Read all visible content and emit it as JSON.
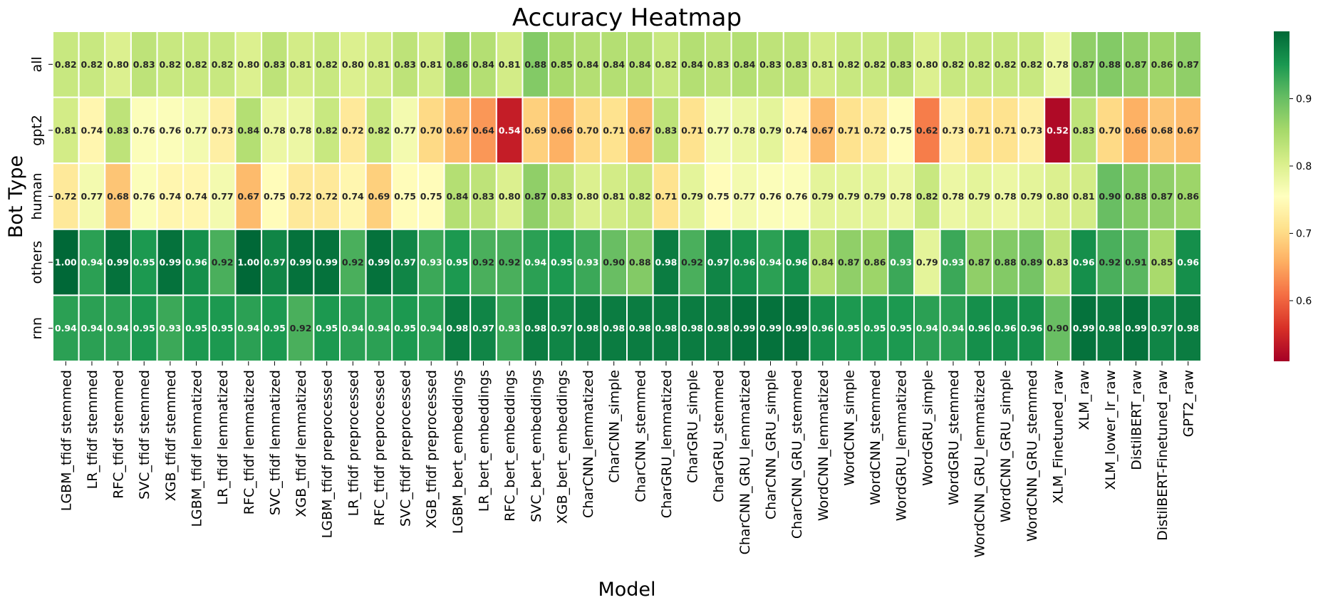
{
  "chart_data": {
    "type": "heatmap",
    "title": "Accuracy Heatmap",
    "xlabel": "Model",
    "ylabel": "Bot Type",
    "rows": [
      "all",
      "gpt2",
      "human",
      "others",
      "rnn"
    ],
    "columns": [
      "LGBM_tfidf stemmed",
      "LR_tfidf stemmed",
      "RFC_tfidf stemmed",
      "SVC_tfidf stemmed",
      "XGB_tfidf stemmed",
      "LGBM_tfidf lemmatized",
      "LR_tfidf lemmatized",
      "RFC_tfidf lemmatized",
      "SVC_tfidf lemmatized",
      "XGB_tfidf lemmatized",
      "LGBM_tfidf preprocessed",
      "LR_tfidf preprocessed",
      "RFC_tfidf preprocessed",
      "SVC_tfidf preprocessed",
      "XGB_tfidf preprocessed",
      "LGBM_bert_embeddings",
      "LR_bert_embeddings",
      "RFC_bert_embeddings",
      "SVC_bert_embeddings",
      "XGB_bert_embeddings",
      "CharCNN_lemmatized",
      "CharCNN_simple",
      "CharCNN_stemmed",
      "CharGRU_lemmatized",
      "CharGRU_simple",
      "CharGRU_stemmed",
      "CharCNN_GRU_lemmatized",
      "CharCNN_GRU_simple",
      "CharCNN_GRU_stemmed",
      "WordCNN_lemmatized",
      "WordCNN_simple",
      "WordCNN_stemmed",
      "WordGRU_lemmatized",
      "WordGRU_simple",
      "WordGRU_stemmed",
      "WordCNN_GRU_lemmatized",
      "WordCNN_GRU_simple",
      "WordCNN_GRU_stemmed",
      "XLM_Finetuned_raw",
      "XLM_raw",
      "XLM_lower_lr_raw",
      "DistilBERT_raw",
      "DistilBERT-Finetuned_raw",
      "GPT2_raw"
    ],
    "values": [
      [
        0.82,
        0.82,
        0.8,
        0.83,
        0.82,
        0.82,
        0.82,
        0.8,
        0.83,
        0.81,
        0.82,
        0.8,
        0.81,
        0.83,
        0.81,
        0.86,
        0.84,
        0.81,
        0.88,
        0.85,
        0.84,
        0.84,
        0.84,
        0.82,
        0.84,
        0.83,
        0.84,
        0.83,
        0.83,
        0.81,
        0.82,
        0.82,
        0.83,
        0.8,
        0.82,
        0.82,
        0.82,
        0.82,
        0.78,
        0.87,
        0.88,
        0.87,
        0.86,
        0.87
      ],
      [
        0.81,
        0.74,
        0.83,
        0.76,
        0.76,
        0.77,
        0.73,
        0.84,
        0.78,
        0.78,
        0.82,
        0.72,
        0.82,
        0.77,
        0.7,
        0.67,
        0.64,
        0.54,
        0.69,
        0.66,
        0.7,
        0.71,
        0.67,
        0.83,
        0.71,
        0.77,
        0.78,
        0.79,
        0.74,
        0.67,
        0.71,
        0.72,
        0.75,
        0.62,
        0.73,
        0.71,
        0.71,
        0.73,
        0.52,
        0.83,
        0.7,
        0.66,
        0.68,
        0.67
      ],
      [
        0.72,
        0.77,
        0.68,
        0.76,
        0.74,
        0.74,
        0.77,
        0.67,
        0.75,
        0.72,
        0.72,
        0.74,
        0.69,
        0.75,
        0.75,
        0.84,
        0.83,
        0.8,
        0.87,
        0.83,
        0.8,
        0.81,
        0.82,
        0.71,
        0.79,
        0.75,
        0.77,
        0.76,
        0.76,
        0.79,
        0.79,
        0.79,
        0.78,
        0.82,
        0.78,
        0.79,
        0.78,
        0.79,
        0.8,
        0.81,
        0.9,
        0.88,
        0.87,
        0.86
      ],
      [
        1.0,
        0.94,
        0.99,
        0.95,
        0.99,
        0.96,
        0.92,
        1.0,
        0.97,
        0.99,
        0.99,
        0.92,
        0.99,
        0.97,
        0.93,
        0.95,
        0.92,
        0.92,
        0.94,
        0.95,
        0.93,
        0.9,
        0.88,
        0.98,
        0.92,
        0.97,
        0.96,
        0.94,
        0.96,
        0.84,
        0.87,
        0.86,
        0.93,
        0.79,
        0.93,
        0.87,
        0.88,
        0.89,
        0.83,
        0.96,
        0.92,
        0.91,
        0.85,
        0.96
      ],
      [
        0.94,
        0.94,
        0.94,
        0.95,
        0.93,
        0.95,
        0.95,
        0.94,
        0.95,
        0.92,
        0.95,
        0.94,
        0.94,
        0.95,
        0.94,
        0.98,
        0.97,
        0.93,
        0.98,
        0.97,
        0.98,
        0.98,
        0.98,
        0.98,
        0.98,
        0.98,
        0.99,
        0.99,
        0.99,
        0.96,
        0.95,
        0.95,
        0.95,
        0.94,
        0.94,
        0.96,
        0.96,
        0.96,
        0.9,
        0.99,
        0.98,
        0.99,
        0.97,
        0.98
      ]
    ],
    "vmin": 0.51,
    "vmax": 1.0,
    "colormap": "RdYlGn",
    "colorbar_ticks": [
      0.6,
      0.7,
      0.8,
      0.9
    ],
    "colorbar_tick_labels": [
      "0.6",
      "0.7",
      "0.8",
      "0.9"
    ],
    "legend_placement": "right",
    "grid": false
  }
}
